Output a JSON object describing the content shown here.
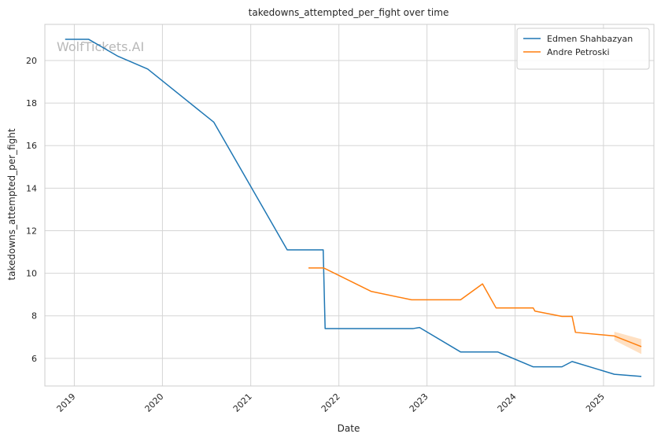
{
  "chart_data": {
    "type": "line",
    "title": "takedowns_attempted_per_fight over time",
    "xlabel": "Date",
    "ylabel": "takedowns_attempted_per_fight",
    "watermark": "WolfTickets.AI",
    "x_ticks": [
      "2019",
      "2020",
      "2021",
      "2022",
      "2023",
      "2024",
      "2025"
    ],
    "y_ticks": [
      6,
      8,
      10,
      12,
      14,
      16,
      18,
      20
    ],
    "xlim": [
      "2018-09-01",
      "2025-07-29"
    ],
    "ylim": [
      4.7,
      21.7
    ],
    "grid": true,
    "legend_position": "top-right",
    "colors": {
      "series_1": "#1f77b4",
      "series_2": "#ff7f0e",
      "band": "#ffcc99",
      "grid": "#d5d5d5",
      "frame": "#cccccc"
    },
    "series": [
      {
        "name": "Edmen Shahbazyan",
        "color": "#1f77b4",
        "points": [
          [
            "2018-11-24",
            21.0
          ],
          [
            "2019-03-01",
            21.0
          ],
          [
            "2019-07-01",
            20.2
          ],
          [
            "2019-11-01",
            19.6
          ],
          [
            "2020-08-01",
            17.1
          ],
          [
            "2021-06-01",
            11.1
          ],
          [
            "2021-10-28",
            11.1
          ],
          [
            "2021-11-05",
            7.4
          ],
          [
            "2022-11-05",
            7.4
          ],
          [
            "2022-12-01",
            7.45
          ],
          [
            "2023-05-20",
            6.3
          ],
          [
            "2023-10-21",
            6.3
          ],
          [
            "2024-03-16",
            5.6
          ],
          [
            "2024-07-13",
            5.6
          ],
          [
            "2024-08-24",
            5.85
          ],
          [
            "2025-02-15",
            5.25
          ],
          [
            "2025-06-07",
            5.15
          ]
        ]
      },
      {
        "name": "Andre Petroski",
        "color": "#ff7f0e",
        "points": [
          [
            "2021-08-28",
            10.25
          ],
          [
            "2021-10-30",
            10.25
          ],
          [
            "2022-05-14",
            9.15
          ],
          [
            "2022-10-29",
            8.75
          ],
          [
            "2023-05-20",
            8.75
          ],
          [
            "2023-08-19",
            9.5
          ],
          [
            "2023-10-14",
            8.37
          ],
          [
            "2024-03-16",
            8.37
          ],
          [
            "2024-03-23",
            8.22
          ],
          [
            "2024-07-13",
            7.97
          ],
          [
            "2024-08-24",
            7.97
          ],
          [
            "2024-09-07",
            7.22
          ],
          [
            "2025-02-15",
            7.05
          ],
          [
            "2025-06-07",
            6.55
          ]
        ],
        "band": [
          [
            "2025-02-15",
            6.85,
            7.25
          ],
          [
            "2025-06-07",
            6.2,
            6.9
          ]
        ]
      }
    ]
  }
}
